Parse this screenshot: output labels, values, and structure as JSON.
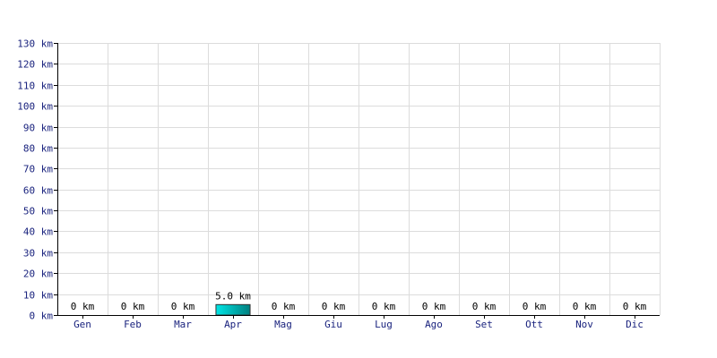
{
  "chart_data": {
    "type": "bar",
    "title": "",
    "xlabel": "",
    "ylabel": "",
    "categories": [
      "Gen",
      "Feb",
      "Mar",
      "Apr",
      "Mag",
      "Giu",
      "Lug",
      "Ago",
      "Set",
      "Ott",
      "Nov",
      "Dic"
    ],
    "values": [
      0,
      0,
      0,
      5.0,
      0,
      0,
      0,
      0,
      0,
      0,
      0,
      0
    ],
    "data_labels": [
      "0 km",
      "0 km",
      "0 km",
      "5.0 km",
      "0 km",
      "0 km",
      "0 km",
      "0 km",
      "0 km",
      "0 km",
      "0 km",
      "0 km"
    ],
    "y_ticks": [
      0,
      10,
      20,
      30,
      40,
      50,
      60,
      70,
      80,
      90,
      100,
      110,
      120,
      130
    ],
    "y_tick_labels": [
      "0 km",
      "10 km",
      "20 km",
      "30 km",
      "40 km",
      "50 km",
      "60 km",
      "70 km",
      "80 km",
      "90 km",
      "100 km",
      "110 km",
      "120 km",
      "130 km"
    ],
    "ylim": [
      0,
      130
    ],
    "grid": true,
    "legend": "none",
    "colors": {
      "bar_top": "#00e5e5",
      "bar_bottom": "#007f7f",
      "tick_text": "#1a237e",
      "grid": "#dcdcdc"
    }
  }
}
